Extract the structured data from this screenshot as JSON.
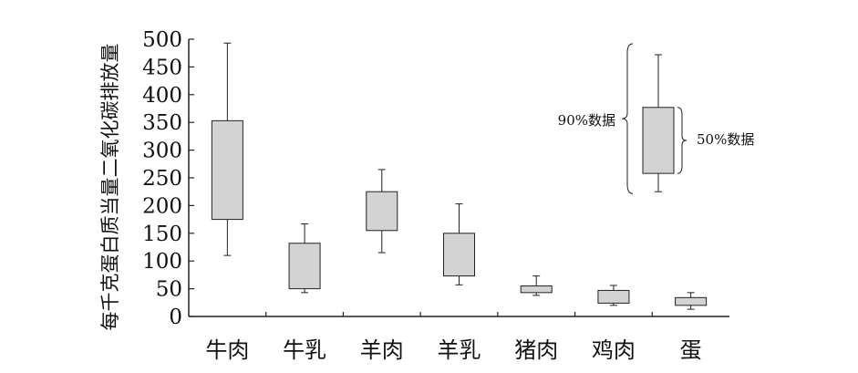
{
  "chart_data": {
    "type": "boxplot",
    "title": "",
    "xlabel": "",
    "ylabel": "每千克蛋白质当量二氧化碳排放量",
    "ylim": [
      0,
      500
    ],
    "yticks": [
      0,
      50,
      100,
      150,
      200,
      250,
      300,
      350,
      400,
      450,
      500
    ],
    "categories": [
      "牛肉",
      "牛乳",
      "羊肉",
      "羊乳",
      "猪肉",
      "鸡肉",
      "蛋"
    ],
    "boxes": [
      {
        "category": "牛肉",
        "whisker_low": 110,
        "q1": 175,
        "q3": 353,
        "whisker_high": 493
      },
      {
        "category": "牛乳",
        "whisker_low": 43,
        "q1": 50,
        "q3": 132,
        "whisker_high": 167
      },
      {
        "category": "羊肉",
        "whisker_low": 115,
        "q1": 155,
        "q3": 225,
        "whisker_high": 265
      },
      {
        "category": "羊乳",
        "whisker_low": 57,
        "q1": 73,
        "q3": 150,
        "whisker_high": 203
      },
      {
        "category": "猪肉",
        "whisker_low": 38,
        "q1": 43,
        "q3": 55,
        "whisker_high": 73
      },
      {
        "category": "鸡肉",
        "whisker_low": 20,
        "q1": 24,
        "q3": 47,
        "whisker_high": 56
      },
      {
        "category": "蛋",
        "whisker_low": 13,
        "q1": 20,
        "q3": 34,
        "whisker_high": 43
      }
    ],
    "legend": {
      "placement": "top-right",
      "label_outer": "90%数据",
      "label_inner": "50%数据",
      "example": {
        "whisker_low": 225,
        "q1": 258,
        "q3": 377,
        "whisker_high": 472
      }
    },
    "box_fill": "#d3d3d3",
    "stroke": "#222222"
  }
}
